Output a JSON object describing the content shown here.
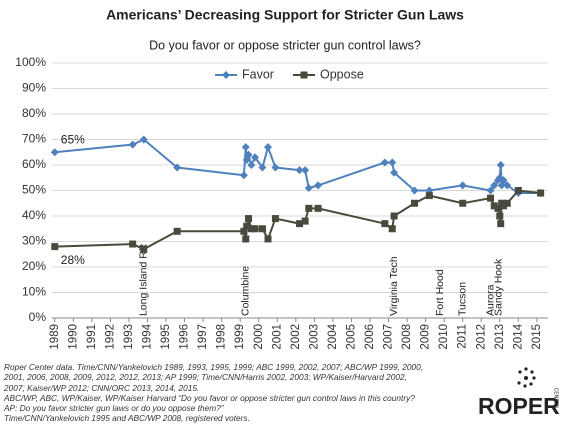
{
  "chart_data": {
    "type": "line",
    "title": "Americans’ Decreasing Support for Stricter Gun Laws",
    "subtitle": "Do you favor or oppose stricter gun control laws?",
    "x": [
      1989,
      1993.2,
      1993.8,
      1995.6,
      1999.2,
      1999.3,
      1999.35,
      1999.45,
      1999.6,
      1999.8,
      2000.2,
      2000.5,
      2000.9,
      2002.2,
      2002.5,
      2002.7,
      2003.2,
      2006.8,
      2007.2,
      2007.3,
      2008.4,
      2009.2,
      2011.0,
      2012.5,
      2012.7,
      2012.9,
      2013.0,
      2013.05,
      2013.1,
      2013.2,
      2013.4,
      2014.0,
      2015.2
    ],
    "series": [
      {
        "name": "Favor",
        "color": "#4f81bd",
        "marker": "diamond",
        "values": [
          65,
          68,
          70,
          59,
          56,
          67,
          62,
          64,
          60,
          63,
          59,
          67,
          59,
          58,
          58,
          51,
          52,
          61,
          61,
          57,
          50,
          50,
          52,
          50,
          52,
          54,
          55,
          60,
          52,
          54,
          52,
          49,
          49
        ],
        "value_labels": [
          "65%",
          null,
          null,
          null,
          null,
          null,
          null,
          null,
          null,
          null,
          null,
          null,
          null,
          null,
          null,
          null,
          null,
          null,
          null,
          null,
          null,
          null,
          null,
          null,
          null,
          null,
          null,
          null,
          null,
          null,
          null,
          null,
          null
        ]
      },
      {
        "name": "Oppose",
        "color": "#4a4a3c",
        "marker": "square",
        "values": [
          28,
          29,
          27,
          34,
          34,
          31,
          36,
          39,
          35,
          35,
          35,
          31,
          39,
          37,
          38,
          43,
          43,
          37,
          35,
          40,
          45,
          48,
          45,
          47,
          44,
          43,
          40,
          37,
          45,
          44,
          45,
          50,
          49
        ],
        "value_labels": [
          "28%",
          null,
          null,
          null,
          null,
          null,
          null,
          null,
          null,
          null,
          null,
          null,
          null,
          null,
          null,
          null,
          null,
          null,
          null,
          null,
          null,
          null,
          null,
          null,
          null,
          null,
          null,
          null,
          null,
          null,
          null,
          null,
          null
        ]
      }
    ],
    "events": [
      {
        "text": "Long Island RR",
        "x": 1993.8
      },
      {
        "text": "Columbine",
        "x": 1999.3
      },
      {
        "text": "Virginia Tech",
        "x": 2007.3
      },
      {
        "text": "Fort Hood",
        "x": 2009.8
      },
      {
        "text": "Tucson",
        "x": 2011.0
      },
      {
        "text": "Aurora",
        "x": 2012.5
      },
      {
        "text": "Sandy Hook",
        "x": 2012.95
      }
    ],
    "xlim": [
      1988.85,
      2015.6
    ],
    "xticks": [
      1989,
      1990,
      1991,
      1992,
      1993,
      1994,
      1995,
      1996,
      1997,
      1998,
      1999,
      2000,
      2001,
      2002,
      2003,
      2004,
      2005,
      2006,
      2007,
      2008,
      2009,
      2010,
      2011,
      2012,
      2013,
      2014,
      2015
    ],
    "ylim": [
      0,
      100
    ],
    "yticks": [
      {
        "value": 0,
        "label": "0%"
      },
      {
        "value": 10,
        "label": "10%"
      },
      {
        "value": 20,
        "label": "20%"
      },
      {
        "value": 30,
        "label": "30%"
      },
      {
        "value": 40,
        "label": "40%"
      },
      {
        "value": 50,
        "label": "50%"
      },
      {
        "value": 60,
        "label": "60%"
      },
      {
        "value": 70,
        "label": "70%"
      },
      {
        "value": 80,
        "label": "80%"
      },
      {
        "value": 90,
        "label": "90%"
      },
      {
        "value": 100,
        "label": "100%"
      }
    ],
    "grid": true,
    "legend": "top"
  },
  "notes": [
    "Roper Center data. Time/CNN/Yankelovich 1989, 1993, 1995, 1999; ABC 1999, 2002, 2007; ABC/WP 1999, 2000, 2001, 2006, 2008, 2009, 2012, 2012, 2013; AP 1999; Time/CNN/Harris 2002, 2003; WP/Kaiser/Harvard 2002, 2007; Kaiser/WP 2012; CNN/ORC 2013, 2014, 2015.",
    "ABC/WP, ABC, WP/Kaiser, WP/Kaiser Harvard “Do you favor or oppose stricter gun control laws in this country?",
    "AP: Do you favor stricter gun laws or do you oppose them?”",
    "Time/CNN/Yankelovich 1995 and ABC/WP 2008, registered voters."
  ],
  "logo": {
    "name": "ROPER",
    "sub": "CENTER"
  }
}
